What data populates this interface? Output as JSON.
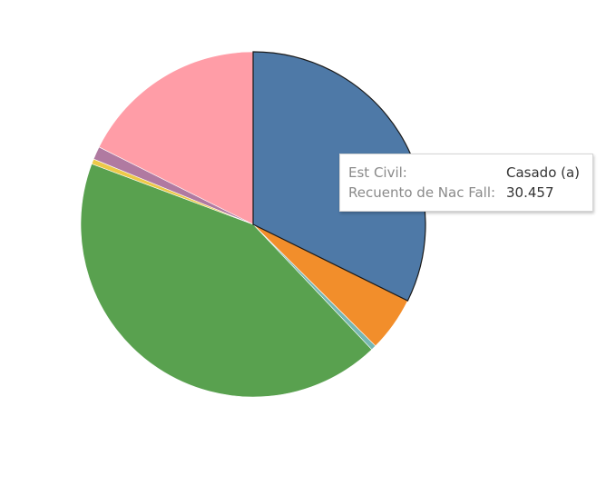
{
  "chart_data": {
    "type": "pie",
    "title": "",
    "start_angle_deg": 0,
    "direction": "clockwise",
    "highlighted_index": 0,
    "slices": [
      {
        "value": 30.457,
        "color": "#4e79a7"
      },
      {
        "value": 4.85,
        "color": "#f28e2b"
      },
      {
        "value": 0.45,
        "color": "#76b7b2"
      },
      {
        "value": 40.35,
        "color": "#59a14f"
      },
      {
        "value": 0.45,
        "color": "#edc948"
      },
      {
        "value": 1.15,
        "color": "#b07aa1"
      },
      {
        "value": 16.6,
        "color": "#ff9da7"
      }
    ]
  },
  "tooltip": {
    "rows": [
      {
        "key": "Est Civil:",
        "value": "Casado (a)"
      },
      {
        "key": "Recuento de Nac Fall:",
        "value": "30.457"
      }
    ]
  }
}
